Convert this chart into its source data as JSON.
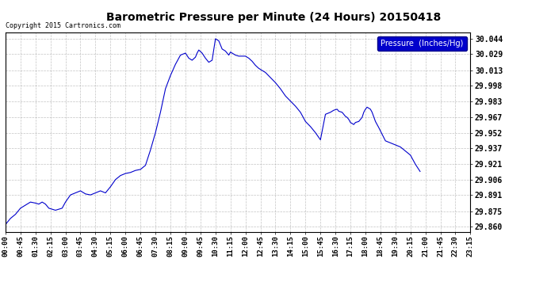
{
  "title": "Barometric Pressure per Minute (24 Hours) 20150418",
  "copyright": "Copyright 2015 Cartronics.com",
  "legend_label": "Pressure  (Inches/Hg)",
  "line_color": "#0000CC",
  "background_color": "#ffffff",
  "plot_bg_color": "#ffffff",
  "grid_color": "#aaaaaa",
  "yticks": [
    29.86,
    29.875,
    29.891,
    29.906,
    29.921,
    29.937,
    29.952,
    29.967,
    29.983,
    29.998,
    30.013,
    30.029,
    30.044
  ],
  "ylim": [
    29.855,
    30.05
  ],
  "xtick_labels": [
    "00:00",
    "00:45",
    "01:30",
    "02:15",
    "03:00",
    "03:45",
    "04:30",
    "05:15",
    "06:00",
    "06:45",
    "07:30",
    "08:15",
    "09:00",
    "09:45",
    "10:30",
    "11:15",
    "12:00",
    "12:45",
    "13:30",
    "14:15",
    "15:00",
    "15:45",
    "16:30",
    "17:15",
    "18:00",
    "18:45",
    "19:30",
    "20:15",
    "21:00",
    "21:45",
    "22:30",
    "23:15"
  ],
  "data_points": [
    [
      0,
      29.862
    ],
    [
      15,
      29.868
    ],
    [
      30,
      29.872
    ],
    [
      45,
      29.878
    ],
    [
      60,
      29.881
    ],
    [
      75,
      29.884
    ],
    [
      90,
      29.883
    ],
    [
      100,
      29.882
    ],
    [
      110,
      29.884
    ],
    [
      120,
      29.882
    ],
    [
      130,
      29.878
    ],
    [
      140,
      29.877
    ],
    [
      150,
      29.876
    ],
    [
      160,
      29.877
    ],
    [
      170,
      29.878
    ],
    [
      180,
      29.884
    ],
    [
      195,
      29.891
    ],
    [
      210,
      29.893
    ],
    [
      225,
      29.895
    ],
    [
      240,
      29.892
    ],
    [
      255,
      29.891
    ],
    [
      270,
      29.893
    ],
    [
      285,
      29.895
    ],
    [
      300,
      29.893
    ],
    [
      315,
      29.899
    ],
    [
      330,
      29.906
    ],
    [
      345,
      29.91
    ],
    [
      360,
      29.912
    ],
    [
      375,
      29.913
    ],
    [
      390,
      29.915
    ],
    [
      405,
      29.916
    ],
    [
      420,
      29.92
    ],
    [
      435,
      29.935
    ],
    [
      450,
      29.952
    ],
    [
      465,
      29.972
    ],
    [
      480,
      29.995
    ],
    [
      495,
      30.008
    ],
    [
      510,
      30.019
    ],
    [
      525,
      30.028
    ],
    [
      540,
      30.03
    ],
    [
      550,
      30.025
    ],
    [
      560,
      30.023
    ],
    [
      570,
      30.026
    ],
    [
      575,
      30.03
    ],
    [
      580,
      30.033
    ],
    [
      590,
      30.03
    ],
    [
      600,
      30.025
    ],
    [
      610,
      30.021
    ],
    [
      620,
      30.023
    ],
    [
      630,
      30.044
    ],
    [
      640,
      30.042
    ],
    [
      645,
      30.038
    ],
    [
      650,
      30.034
    ],
    [
      660,
      30.032
    ],
    [
      670,
      30.028
    ],
    [
      675,
      30.031
    ],
    [
      680,
      30.03
    ],
    [
      690,
      30.028
    ],
    [
      700,
      30.027
    ],
    [
      720,
      30.027
    ],
    [
      730,
      30.025
    ],
    [
      740,
      30.022
    ],
    [
      750,
      30.018
    ],
    [
      760,
      30.015
    ],
    [
      770,
      30.013
    ],
    [
      780,
      30.011
    ],
    [
      795,
      30.006
    ],
    [
      810,
      30.001
    ],
    [
      825,
      29.995
    ],
    [
      840,
      29.988
    ],
    [
      855,
      29.983
    ],
    [
      870,
      29.978
    ],
    [
      885,
      29.972
    ],
    [
      900,
      29.963
    ],
    [
      915,
      29.958
    ],
    [
      930,
      29.952
    ],
    [
      945,
      29.945
    ],
    [
      960,
      29.97
    ],
    [
      975,
      29.972
    ],
    [
      985,
      29.974
    ],
    [
      995,
      29.975
    ],
    [
      1000,
      29.973
    ],
    [
      1010,
      29.972
    ],
    [
      1020,
      29.968
    ],
    [
      1025,
      29.967
    ],
    [
      1030,
      29.965
    ],
    [
      1035,
      29.962
    ],
    [
      1040,
      29.961
    ],
    [
      1045,
      29.96
    ],
    [
      1050,
      29.962
    ],
    [
      1060,
      29.963
    ],
    [
      1065,
      29.965
    ],
    [
      1070,
      29.967
    ],
    [
      1075,
      29.972
    ],
    [
      1080,
      29.975
    ],
    [
      1085,
      29.977
    ],
    [
      1090,
      29.976
    ],
    [
      1095,
      29.975
    ],
    [
      1100,
      29.972
    ],
    [
      1110,
      29.963
    ],
    [
      1120,
      29.957
    ],
    [
      1140,
      29.944
    ],
    [
      1155,
      29.942
    ],
    [
      1170,
      29.94
    ],
    [
      1185,
      29.938
    ],
    [
      1200,
      29.934
    ],
    [
      1215,
      29.93
    ],
    [
      1230,
      29.921
    ],
    [
      1244,
      29.914
    ]
  ]
}
